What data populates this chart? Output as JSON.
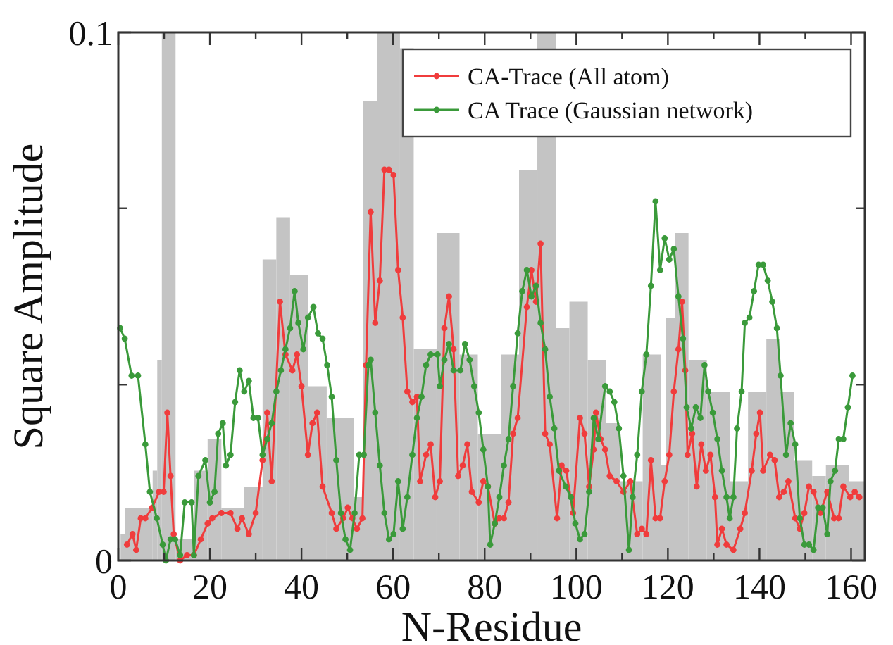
{
  "chart_data": {
    "type": "line",
    "xlabel": "N-Residue",
    "ylabel": "Square Amplitude",
    "xlim": [
      0,
      163
    ],
    "ylim": [
      0,
      0.1
    ],
    "xticks": [
      0,
      {
        "value": 10,
        "label": null
      },
      20,
      {
        "value": 30,
        "label": null
      },
      40,
      {
        "value": 50,
        "label": null
      },
      60,
      {
        "value": 70,
        "label": null
      },
      80,
      {
        "value": 90,
        "label": null
      },
      100,
      {
        "value": 110,
        "label": null
      },
      120,
      {
        "value": 130,
        "label": null
      },
      140,
      {
        "value": 150,
        "label": null
      },
      160
    ],
    "yticks": [
      0,
      {
        "value": 0.0333,
        "label": null
      },
      {
        "value": 0.0667,
        "label": null
      },
      0.1
    ],
    "grid": false,
    "legend": "top right",
    "marker": "circle",
    "line_style": "solid",
    "series": [
      {
        "type": "histogram",
        "color": "#c4c4c4",
        "bins": [
          0.5,
          1.5,
          7.5,
          8.5,
          9.5,
          12.5,
          16.5,
          19.5,
          22.5,
          27.5,
          31.5,
          34.5,
          37.5,
          41.5,
          45.5,
          51.5,
          53.5,
          56.5,
          61.5,
          64.5,
          69.5,
          74.5,
          78.5,
          83.5,
          87.5,
          91.5,
          95.5,
          98.5,
          102.5,
          106.5,
          109.5,
          114.5,
          118.5,
          119.5,
          121.5,
          124.5,
          128.5,
          133.5,
          137.5,
          141.5,
          144.5,
          147.5,
          151.5,
          154.5,
          159.5,
          163
        ],
        "values": [
          0.005,
          0.01,
          0.017,
          0.038,
          0.1,
          0.004,
          0.017,
          0.023,
          0.01,
          0.014,
          0.057,
          0.065,
          0.054,
          0.033,
          0.027,
          0.012,
          0.087,
          0.1,
          0.097,
          0.04,
          0.062,
          0.039,
          0.024,
          0.039,
          0.074,
          0.1,
          0.044,
          0.049,
          0.038,
          0.026,
          0.015,
          0.039,
          0.018,
          0.046,
          0.062,
          0.038,
          0.032,
          0.015,
          0.032,
          0.042,
          0.032,
          0.019,
          0.016,
          0.018,
          0.015
        ]
      },
      {
        "name": "CA-Trace (All atom)",
        "color": "#f03c3c",
        "x": [
          1.9,
          3.1,
          3.9,
          4.9,
          5.9,
          7.4,
          8.9,
          9.9,
          10.7,
          11.4,
          12.1,
          13.5,
          15,
          16.5,
          18,
          19.5,
          20.5,
          22.5,
          24.5,
          26,
          27,
          28.5,
          30,
          31.5,
          32.5,
          33.5,
          35.3,
          36.5,
          38,
          39,
          40,
          41.4,
          42.4,
          43.4,
          44.6,
          46.6,
          47.6,
          49.1,
          50.1,
          51.1,
          52.1,
          53.3,
          54.1,
          55.1,
          56.1,
          57.1,
          58.1,
          59.1,
          60.1,
          61.1,
          62.1,
          63.1,
          64.2,
          65.2,
          65.9,
          67.2,
          68.2,
          69.2,
          70.2,
          71.2,
          72.2,
          73.2,
          74.2,
          75.2,
          76.2,
          77.2,
          78.7,
          79.7,
          80.7,
          82.2,
          83.2,
          84.2,
          85.2,
          86.2,
          87.2,
          89.2,
          90.2,
          91.2,
          92.2,
          93.2,
          94.2,
          95.8,
          96.8,
          97.8,
          99.3,
          100.8,
          101.8,
          102.8,
          103.8,
          104.3,
          105.3,
          106.3,
          107.3,
          108.8,
          110.3,
          111.8,
          113.3,
          114.3,
          115.3,
          116.3,
          117.3,
          118.3,
          119.3,
          120.3,
          121.3,
          122.3,
          123.1,
          123.8,
          124.3,
          125.3,
          126.3,
          127.3,
          128.3,
          129.3,
          130.3,
          130.8,
          131.8,
          132.8,
          134.3,
          135.8,
          136.8,
          138.3,
          139.3,
          140.1,
          140.8,
          142.3,
          143.3,
          144.3,
          145.3,
          146.3,
          147.8,
          148.8,
          149.8,
          150.8,
          151.8,
          153.3,
          154.8,
          156.3,
          157.3,
          158.3,
          159.8,
          160.8,
          161.8
        ],
        "values": [
          0.003,
          0.005,
          0.002,
          0.008,
          0.008,
          0.01,
          0.013,
          0.013,
          0.028,
          0.016,
          0.005,
          0.0,
          0.001,
          0.001,
          0.004,
          0.007,
          0.008,
          0.009,
          0.009,
          0.006,
          0.008,
          0.005,
          0.009,
          0.019,
          0.028,
          0.015,
          0.049,
          0.039,
          0.036,
          0.039,
          0.033,
          0.02,
          0.026,
          0.028,
          0.014,
          0.009,
          0.006,
          0.008,
          0.01,
          0.008,
          0.006,
          0.008,
          0.037,
          0.066,
          0.045,
          0.053,
          0.074,
          0.074,
          0.073,
          0.055,
          0.046,
          0.032,
          0.03,
          0.031,
          0.015,
          0.02,
          0.022,
          0.012,
          0.015,
          0.044,
          0.05,
          0.04,
          0.016,
          0.018,
          0.022,
          0.013,
          0.011,
          0.015,
          0.014,
          0.007,
          0.008,
          0.008,
          0.011,
          0.024,
          0.027,
          0.048,
          0.055,
          0.049,
          0.06,
          0.024,
          0.022,
          0.008,
          0.018,
          0.017,
          0.009,
          0.027,
          0.024,
          0.014,
          0.021,
          0.028,
          0.023,
          0.021,
          0.016,
          0.015,
          0.013,
          0.015,
          0.005,
          0.006,
          0.005,
          0.019,
          0.008,
          0.008,
          0.015,
          0.02,
          0.032,
          0.04,
          0.049,
          0.036,
          0.02,
          0.024,
          0.014,
          0.022,
          0.017,
          0.02,
          0.012,
          0.003,
          0.006,
          0.003,
          0.002,
          0.006,
          0.009,
          0.017,
          0.024,
          0.028,
          0.017,
          0.02,
          0.019,
          0.012,
          0.013,
          0.015,
          0.008,
          0.006,
          0.009,
          0.014,
          0.013,
          0.009,
          0.013,
          0.008,
          0.008,
          0.014,
          0.012,
          0.013,
          0.012
        ]
      },
      {
        "name": "CA Trace (Gaussian network)",
        "color": "#3a9a3a",
        "x": [
          0.4,
          1.4,
          2.9,
          4.3,
          5.9,
          6.9,
          8.4,
          9.7,
          10.4,
          11.4,
          12.4,
          13.5,
          14.5,
          16,
          16.5,
          17.5,
          19,
          20,
          21,
          21.8,
          22.8,
          23.5,
          24.5,
          25.5,
          26.5,
          27.5,
          28.5,
          29.5,
          30.5,
          31.5,
          32.5,
          33.5,
          34.5,
          35.5,
          36.5,
          37.5,
          38.5,
          39.3,
          40.4,
          41.4,
          42.6,
          43.6,
          44.6,
          45.6,
          46.6,
          47.6,
          48.6,
          49.6,
          50.6,
          51.6,
          52.6,
          53.6,
          54.6,
          55.1,
          56.1,
          57.1,
          58.1,
          59.1,
          60.1,
          61.1,
          62.1,
          63.1,
          64.2,
          65.2,
          66.2,
          67.2,
          68.2,
          69.7,
          70.2,
          71.2,
          72.2,
          73.2,
          74.7,
          75.7,
          76.7,
          77.7,
          78.7,
          79.7,
          80.7,
          81.2,
          82.2,
          83.2,
          84.2,
          85.2,
          86.2,
          87.2,
          88.2,
          89.2,
          90.2,
          91.2,
          92.2,
          93.2,
          94.2,
          95.2,
          96.2,
          97.7,
          98.8,
          99.8,
          100.8,
          101.8,
          102.8,
          103.8,
          104.8,
          106.3,
          107.3,
          108.3,
          109.3,
          110.3,
          111.5,
          112.3,
          113.3,
          114.3,
          115.3,
          116.3,
          117.3,
          118.3,
          119.3,
          120.3,
          121.3,
          122.3,
          123.3,
          124.1,
          125.1,
          126.1,
          127.1,
          128,
          128.8,
          129.8,
          130.8,
          131.8,
          132.8,
          133.5,
          134.3,
          135.1,
          136.1,
          136.8,
          137.8,
          138.8,
          139.8,
          140.8,
          141.8,
          142.8,
          143.8,
          144.6,
          145.8,
          146.8,
          147.8,
          148.8,
          149.8,
          150.8,
          151.8,
          152.8,
          153.8,
          154.8,
          155.5,
          156.5,
          157.3,
          158.3,
          159.3,
          160.3
        ],
        "values": [
          0.044,
          0.042,
          0.035,
          0.035,
          0.022,
          0.013,
          0.008,
          0.003,
          0.0,
          0.004,
          0.004,
          0.001,
          0.011,
          0.011,
          0.001,
          0.016,
          0.019,
          0.011,
          0.013,
          0.024,
          0.026,
          0.018,
          0.02,
          0.03,
          0.036,
          0.032,
          0.034,
          0.027,
          0.027,
          0.02,
          0.023,
          0.026,
          0.032,
          0.036,
          0.04,
          0.044,
          0.051,
          0.045,
          0.04,
          0.046,
          0.048,
          0.043,
          0.042,
          0.037,
          0.031,
          0.019,
          0.009,
          0.004,
          0.002,
          0.009,
          0.02,
          0.02,
          0.037,
          0.038,
          0.028,
          0.018,
          0.009,
          0.004,
          0.005,
          0.015,
          0.006,
          0.012,
          0.02,
          0.027,
          0.031,
          0.037,
          0.039,
          0.039,
          0.033,
          0.038,
          0.041,
          0.036,
          0.036,
          0.041,
          0.038,
          0.033,
          0.028,
          0.021,
          0.014,
          0.003,
          0.007,
          0.012,
          0.018,
          0.023,
          0.033,
          0.043,
          0.051,
          0.055,
          0.05,
          0.052,
          0.045,
          0.04,
          0.031,
          0.025,
          0.017,
          0.014,
          0.012,
          0.007,
          0.004,
          0.005,
          0.013,
          0.027,
          0.023,
          0.033,
          0.032,
          0.03,
          0.025,
          0.016,
          0.002,
          0.012,
          0.02,
          0.032,
          0.039,
          0.052,
          0.068,
          0.055,
          0.061,
          0.057,
          0.059,
          0.05,
          0.042,
          0.029,
          0.025,
          0.029,
          0.027,
          0.037,
          0.032,
          0.028,
          0.023,
          0.017,
          0.012,
          0.008,
          0.012,
          0.025,
          0.032,
          0.045,
          0.046,
          0.051,
          0.056,
          0.056,
          0.053,
          0.049,
          0.044,
          0.035,
          0.02,
          0.026,
          0.022,
          0.008,
          0.003,
          0.003,
          0.002,
          0.01,
          0.01,
          0.005,
          0.015,
          0.017,
          0.023,
          0.023,
          0.029,
          0.035
        ]
      }
    ]
  }
}
